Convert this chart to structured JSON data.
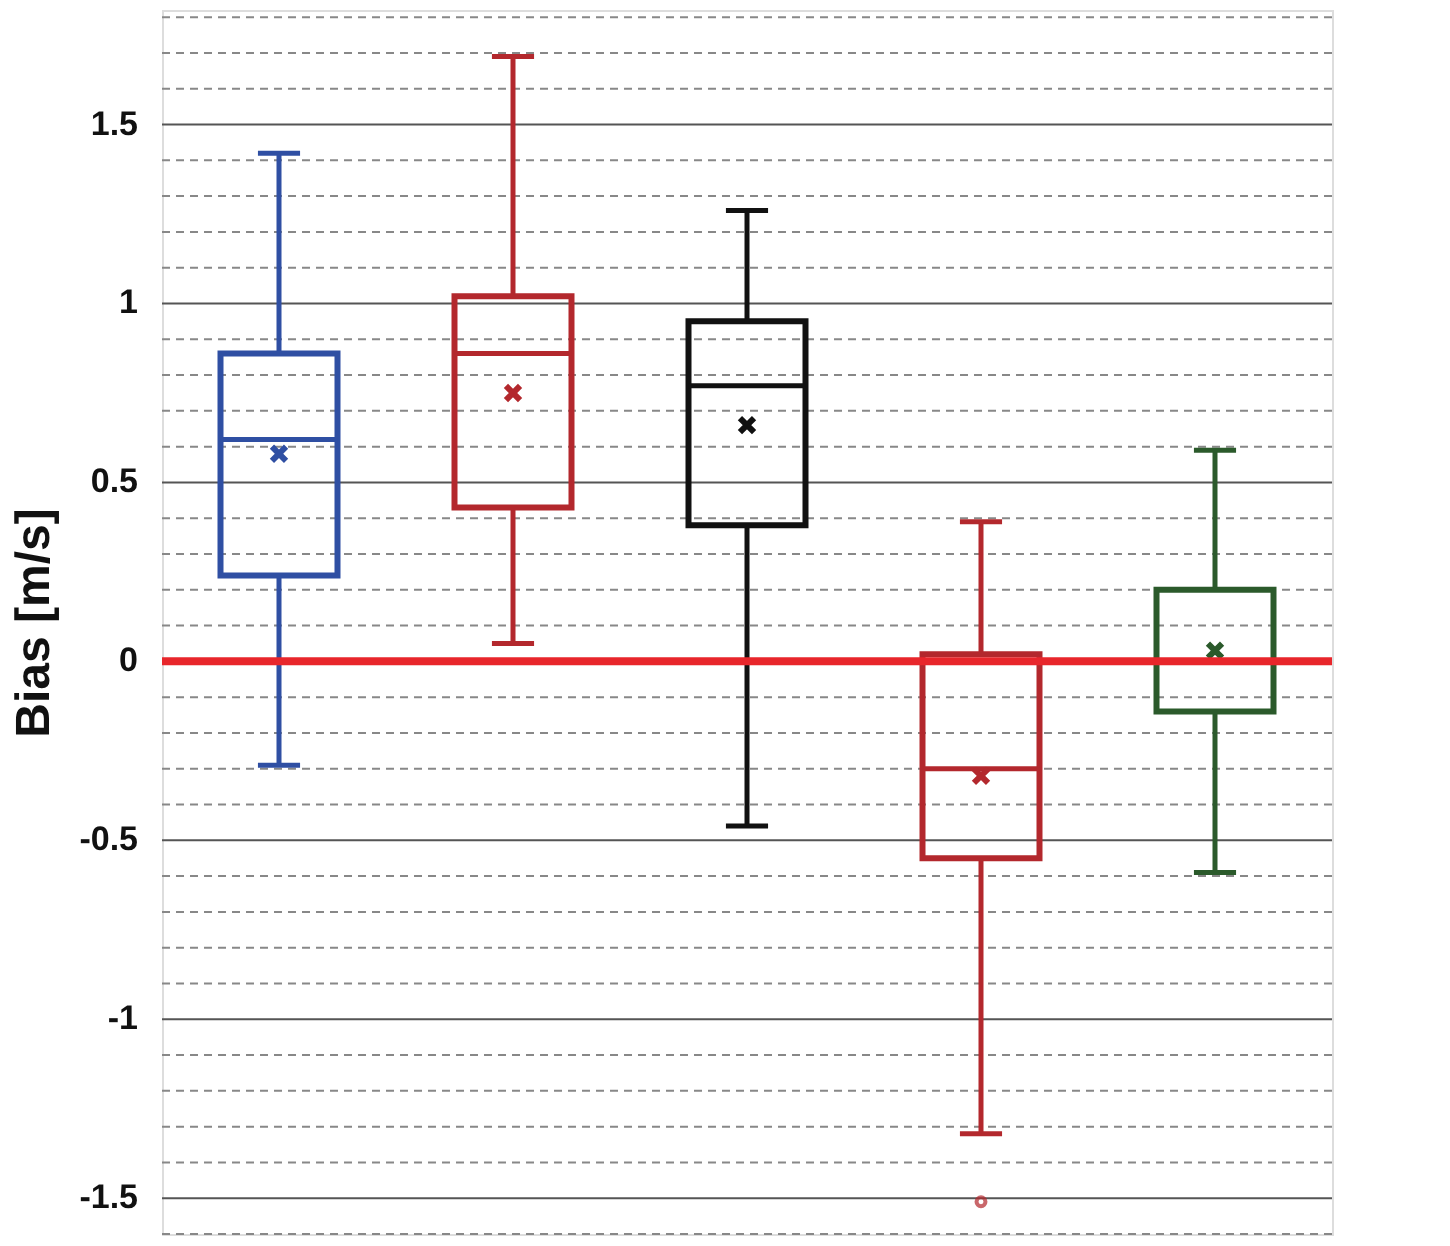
{
  "chart_data": {
    "type": "box",
    "ylabel": "Bias [m/s]",
    "categories": [
      null,
      null,
      null,
      null,
      null
    ],
    "colors": [
      "#2f4fa3",
      "#b3282d",
      "#111111",
      "#b3282d",
      "#2b5a2b"
    ],
    "boxes": [
      {
        "low": -0.29,
        "q1": 0.24,
        "median": 0.62,
        "q3": 0.86,
        "high": 1.42,
        "mean": 0.58
      },
      {
        "low": 0.05,
        "q1": 0.43,
        "median": 0.86,
        "q3": 1.02,
        "high": 1.69,
        "mean": 0.75
      },
      {
        "low": -0.46,
        "q1": 0.38,
        "median": 0.77,
        "q3": 0.95,
        "high": 1.26,
        "mean": 0.66
      },
      {
        "low": -1.32,
        "q1": -0.55,
        "median": -0.3,
        "q3": 0.02,
        "high": 0.39,
        "mean": -0.32,
        "outliers": [
          -1.51
        ]
      },
      {
        "low": -0.59,
        "q1": -0.14,
        "median": 0.0,
        "q3": 0.2,
        "high": 0.59,
        "mean": 0.03
      }
    ],
    "ylim": [
      -1.6,
      1.82
    ],
    "yticks": [
      {
        "value": -1.6,
        "label": null
      },
      -1.5,
      {
        "value": -1.4,
        "label": null
      },
      {
        "value": -1.3,
        "label": null
      },
      {
        "value": -1.2,
        "label": null
      },
      {
        "value": -1.1,
        "label": null
      },
      -1,
      {
        "value": -0.9,
        "label": null
      },
      {
        "value": -0.8,
        "label": null
      },
      {
        "value": -0.7,
        "label": null
      },
      {
        "value": -0.6,
        "label": null
      },
      -0.5,
      {
        "value": -0.4,
        "label": null
      },
      {
        "value": -0.3,
        "label": null
      },
      {
        "value": -0.2,
        "label": null
      },
      {
        "value": -0.1,
        "label": null
      },
      0,
      {
        "value": 0.1,
        "label": null
      },
      {
        "value": 0.2,
        "label": null
      },
      {
        "value": 0.3,
        "label": null
      },
      {
        "value": 0.4,
        "label": null
      },
      0.5,
      {
        "value": 0.6,
        "label": null
      },
      {
        "value": 0.7,
        "label": null
      },
      {
        "value": 0.8,
        "label": null
      },
      {
        "value": 0.9,
        "label": null
      },
      1,
      {
        "value": 1.1,
        "label": null
      },
      {
        "value": 1.2,
        "label": null
      },
      {
        "value": 1.3,
        "label": null
      },
      {
        "value": 1.4,
        "label": null
      },
      1.5,
      {
        "value": 1.6,
        "label": null
      },
      {
        "value": 1.7,
        "label": null
      },
      {
        "value": 1.8,
        "label": null
      }
    ],
    "grid": true,
    "tick_labels": "y",
    "ref_lines": [
      {
        "axis": "y",
        "value": 0,
        "color": "#e8262b"
      }
    ]
  }
}
